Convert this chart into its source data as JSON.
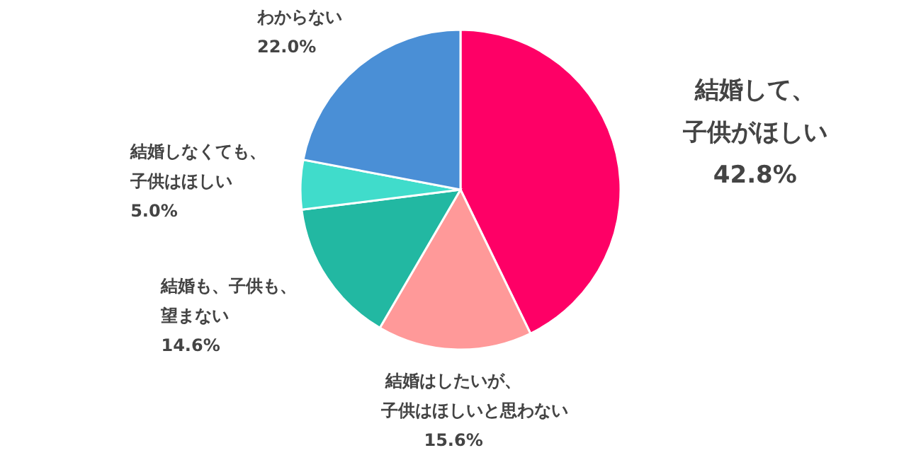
{
  "chart_data": {
    "type": "pie",
    "categories": [
      "結婚して、子供がほしい",
      "結婚はしたいが、子供はほしいと思わない",
      "結婚も、子供も、望まない",
      "結婚しなくても、子供はほしい",
      "わからない"
    ],
    "values": [
      42.8,
      15.6,
      14.6,
      5.0,
      22.0
    ],
    "value_labels": [
      "42.8%",
      "15.6%",
      "14.6%",
      "5.0%",
      "22.0%"
    ],
    "colors": [
      "#fe0066",
      "#ff9999",
      "#22b8a2",
      "#40dccb",
      "#4a8fd6"
    ]
  }
}
